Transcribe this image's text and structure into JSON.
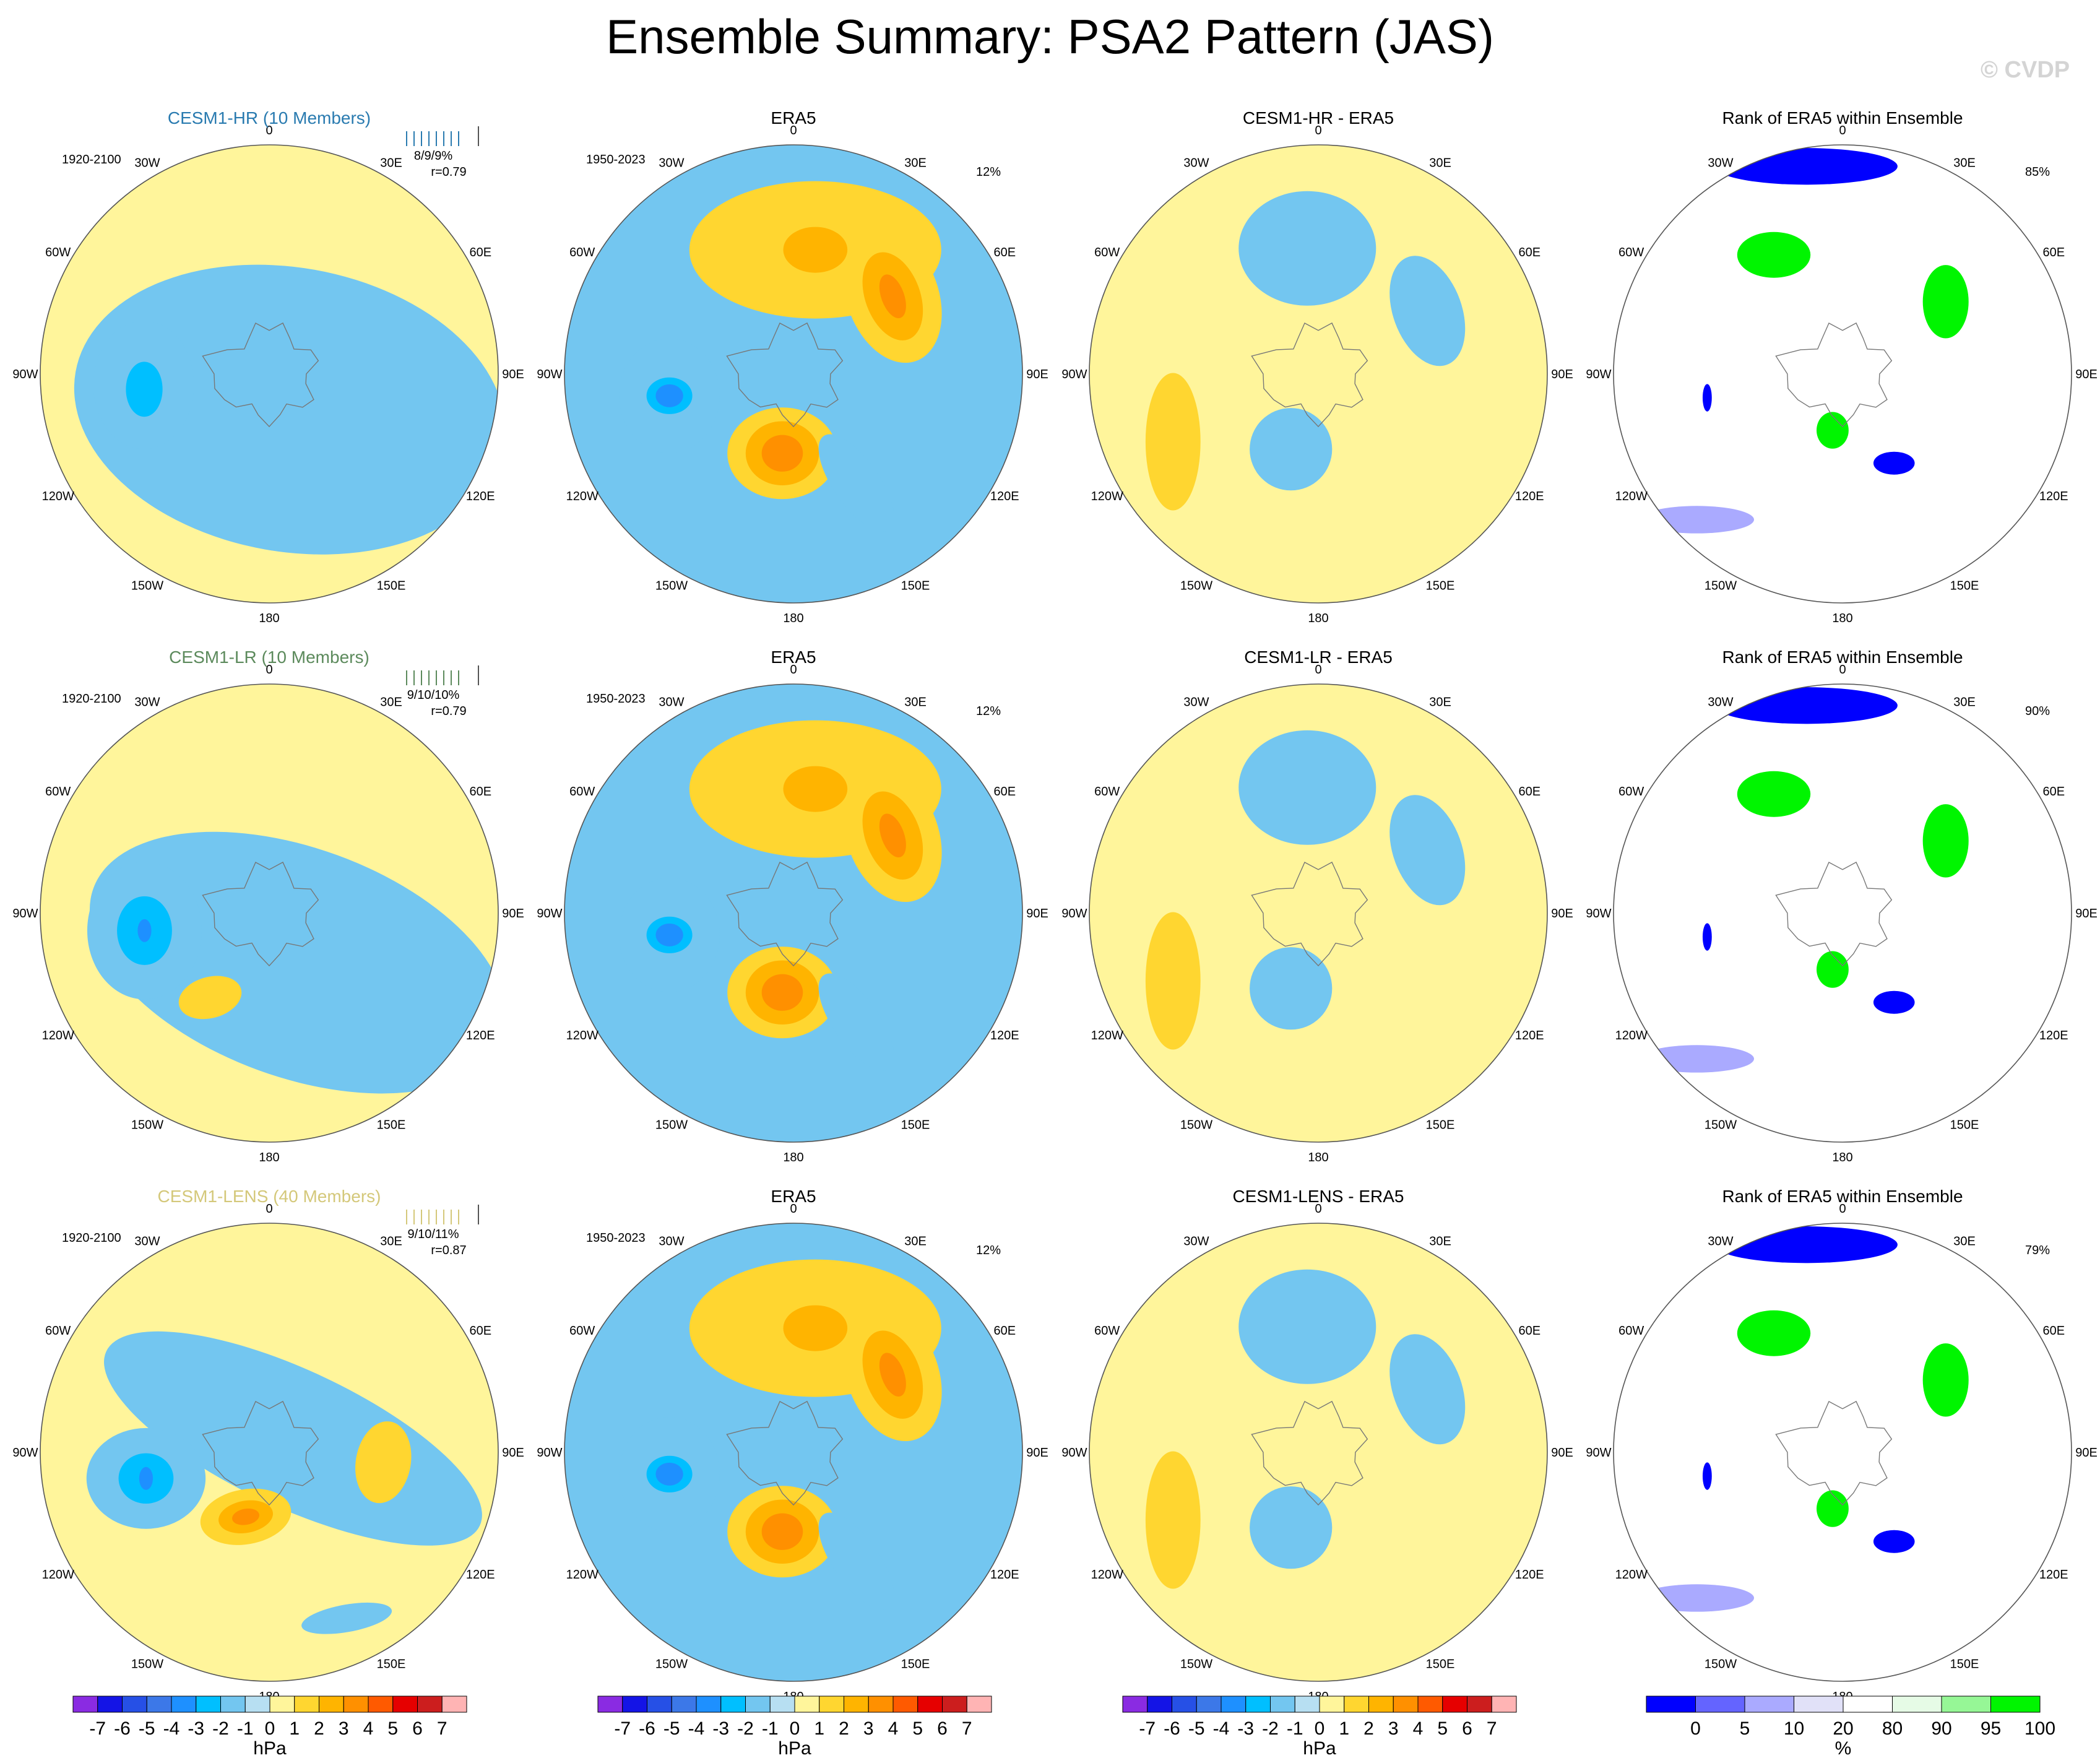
{
  "title": "Ensemble Summary: PSA2 Pattern (JAS)",
  "watermark": "© CVDP",
  "chart_data": {
    "type": "heatmap",
    "projection": "south polar stereographic",
    "longitude_labels": [
      "0",
      "30E",
      "60E",
      "90E",
      "120E",
      "150E",
      "180",
      "150W",
      "120W",
      "90W",
      "60W",
      "30W"
    ],
    "colorbars": {
      "hpa": {
        "unit_label": "hPa",
        "levels": [
          "-7",
          "-6",
          "-5",
          "-4",
          "-3",
          "-2",
          "-1",
          "0",
          "1",
          "2",
          "3",
          "4",
          "5",
          "6",
          "7"
        ],
        "colors": [
          "#8a2be2",
          "#1414e6",
          "#2650e6",
          "#3c78e8",
          "#1e90ff",
          "#00bfff",
          "#73c6f0",
          "#b7dff2",
          "#fff59b",
          "#ffd630",
          "#ffb400",
          "#ff9000",
          "#ff5a00",
          "#e60000",
          "#cc1e1e",
          "#ffb4b4"
        ]
      },
      "rank": {
        "unit_label": "%",
        "levels": [
          "0",
          "5",
          "10",
          "20",
          "80",
          "90",
          "95",
          "100"
        ],
        "colors": [
          "#0000ff",
          "#6464ff",
          "#aaaaff",
          "#e1e1f8",
          "#ffffff",
          "#e6fbe6",
          "#96f796",
          "#00f500"
        ]
      }
    },
    "rows": [
      {
        "model": "CESM1-HR (10 Members)",
        "model_color": "#2a7bb0",
        "years": "1920-2100",
        "stats": "8/9/9%",
        "r": "r=0.79",
        "diff_title": "CESM1-HR - ERA5",
        "rank_pct": "85%",
        "model_blobs": [
          {
            "lon": 150,
            "colat_frac": 0.18,
            "rx": 0.95,
            "ry": 0.62,
            "rot": 10,
            "level": "-1"
          },
          {
            "lon": 265,
            "colat_frac": 0.55,
            "rx": 0.22,
            "ry": 0.28,
            "rot": 0,
            "level": "-1"
          },
          {
            "lon": 263,
            "colat_frac": 0.55,
            "rx": 0.08,
            "ry": 0.12,
            "rot": 0,
            "level": "-2"
          }
        ]
      },
      {
        "model": "CESM1-LR (10 Members)",
        "model_color": "#5c8a5c",
        "years": "1920-2100",
        "stats": "9/10/10%",
        "r": "r=0.79",
        "diff_title": "CESM1-LR - ERA5",
        "rank_pct": "90%",
        "model_blobs": [
          {
            "lon": 150,
            "colat_frac": 0.25,
            "rx": 0.95,
            "ry": 0.5,
            "rot": 20,
            "level": "-1"
          },
          {
            "lon": 262,
            "colat_frac": 0.55,
            "rx": 0.25,
            "ry": 0.3,
            "rot": 0,
            "level": "-1"
          },
          {
            "lon": 262,
            "colat_frac": 0.55,
            "rx": 0.12,
            "ry": 0.15,
            "rot": 0,
            "level": "-2"
          },
          {
            "lon": 262,
            "colat_frac": 0.55,
            "rx": 0.03,
            "ry": 0.05,
            "rot": 0,
            "level": "-3"
          },
          {
            "lon": 215,
            "colat_frac": 0.45,
            "rx": 0.14,
            "ry": 0.09,
            "rot": -15,
            "level": "1"
          }
        ]
      },
      {
        "model": "CESM1-LENS (40 Members)",
        "model_color": "#d4c87a",
        "years": "1920-2100",
        "stats": "9/10/11%",
        "r": "r=0.87",
        "diff_title": "CESM1-LENS - ERA5",
        "rank_pct": "79%",
        "model_blobs": [
          {
            "lon": 60,
            "colat_frac": 0.12,
            "rx": 0.9,
            "ry": 0.3,
            "rot": 25,
            "level": "-1"
          },
          {
            "lon": 258,
            "colat_frac": 0.55,
            "rx": 0.26,
            "ry": 0.22,
            "rot": 0,
            "level": "-1"
          },
          {
            "lon": 258,
            "colat_frac": 0.55,
            "rx": 0.12,
            "ry": 0.11,
            "rot": 0,
            "level": "-2"
          },
          {
            "lon": 258,
            "colat_frac": 0.55,
            "rx": 0.03,
            "ry": 0.05,
            "rot": 0,
            "level": "-3"
          },
          {
            "lon": 200,
            "colat_frac": 0.3,
            "rx": 0.2,
            "ry": 0.12,
            "rot": -10,
            "level": "1"
          },
          {
            "lon": 200,
            "colat_frac": 0.3,
            "rx": 0.12,
            "ry": 0.07,
            "rot": -10,
            "level": "2"
          },
          {
            "lon": 200,
            "colat_frac": 0.3,
            "rx": 0.06,
            "ry": 0.035,
            "rot": -10,
            "level": "3"
          },
          {
            "lon": 95,
            "colat_frac": 0.5,
            "rx": 0.12,
            "ry": 0.18,
            "rot": 10,
            "level": "1"
          },
          {
            "lon": 155,
            "colat_frac": 0.8,
            "rx": 0.2,
            "ry": 0.06,
            "rot": -10,
            "level": "-1"
          }
        ]
      }
    ],
    "era5": {
      "title": "ERA5",
      "years": "1950-2023",
      "pct": "12%",
      "blobs": [
        {
          "lon": 10,
          "colat_frac": 0.55,
          "rx": 0.55,
          "ry": 0.3,
          "rot": 0,
          "level": "1"
        },
        {
          "lon": 10,
          "colat_frac": 0.55,
          "rx": 0.14,
          "ry": 0.1,
          "rot": 0,
          "level": "2"
        },
        {
          "lon": 52,
          "colat_frac": 0.55,
          "rx": 0.2,
          "ry": 0.3,
          "rot": -20,
          "level": "1"
        },
        {
          "lon": 52,
          "colat_frac": 0.55,
          "rx": 0.12,
          "ry": 0.2,
          "rot": -20,
          "level": "2"
        },
        {
          "lon": 52,
          "colat_frac": 0.55,
          "rx": 0.05,
          "ry": 0.1,
          "rot": -20,
          "level": "3"
        },
        {
          "lon": 260,
          "colat_frac": 0.55,
          "rx": 0.22,
          "ry": 0.25,
          "rot": 0,
          "level": "-1"
        },
        {
          "lon": 260,
          "colat_frac": 0.55,
          "rx": 0.1,
          "ry": 0.08,
          "rot": 0,
          "level": "-2"
        },
        {
          "lon": 260,
          "colat_frac": 0.55,
          "rx": 0.06,
          "ry": 0.05,
          "rot": 0,
          "level": "-3"
        },
        {
          "lon": 188,
          "colat_frac": 0.35,
          "rx": 0.24,
          "ry": 0.2,
          "rot": 0,
          "level": "1"
        },
        {
          "lon": 188,
          "colat_frac": 0.35,
          "rx": 0.16,
          "ry": 0.14,
          "rot": 0,
          "level": "2"
        },
        {
          "lon": 188,
          "colat_frac": 0.35,
          "rx": 0.09,
          "ry": 0.08,
          "rot": 0,
          "level": "3"
        },
        {
          "lon": 150,
          "colat_frac": 0.55,
          "rx": 0.1,
          "ry": 0.25,
          "rot": -35,
          "level": "-1"
        }
      ]
    },
    "diff_blobs": [
      {
        "lon": 355,
        "colat_frac": 0.55,
        "rx": 0.3,
        "ry": 0.25,
        "rot": 0,
        "level": "-1"
      },
      {
        "lon": 60,
        "colat_frac": 0.55,
        "rx": 0.15,
        "ry": 0.25,
        "rot": -20,
        "level": "-1"
      },
      {
        "lon": 200,
        "colat_frac": 0.35,
        "rx": 0.18,
        "ry": 0.18,
        "rot": 0,
        "level": "-1"
      },
      {
        "lon": 245,
        "colat_frac": 0.7,
        "rx": 0.12,
        "ry": 0.3,
        "rot": 0,
        "level": "1"
      }
    ],
    "rank_blobs": [
      {
        "lon": 350,
        "colat_frac": 0.92,
        "rx": 0.4,
        "ry": 0.08,
        "rot": 0,
        "level": "0"
      },
      {
        "lon": 330,
        "colat_frac": 0.6,
        "rx": 0.16,
        "ry": 0.1,
        "rot": 0,
        "level": "100"
      },
      {
        "lon": 55,
        "colat_frac": 0.55,
        "rx": 0.1,
        "ry": 0.16,
        "rot": 0,
        "level": "100"
      },
      {
        "lon": 260,
        "colat_frac": 0.6,
        "rx": 0.02,
        "ry": 0.06,
        "rot": 0,
        "level": "0"
      },
      {
        "lon": 190,
        "colat_frac": 0.25,
        "rx": 0.07,
        "ry": 0.08,
        "rot": 0,
        "level": "100"
      },
      {
        "lon": 150,
        "colat_frac": 0.45,
        "rx": 0.09,
        "ry": 0.05,
        "rot": 0,
        "level": "0"
      },
      {
        "lon": 225,
        "colat_frac": 0.9,
        "rx": 0.25,
        "ry": 0.06,
        "rot": 0,
        "level": "10"
      }
    ]
  }
}
